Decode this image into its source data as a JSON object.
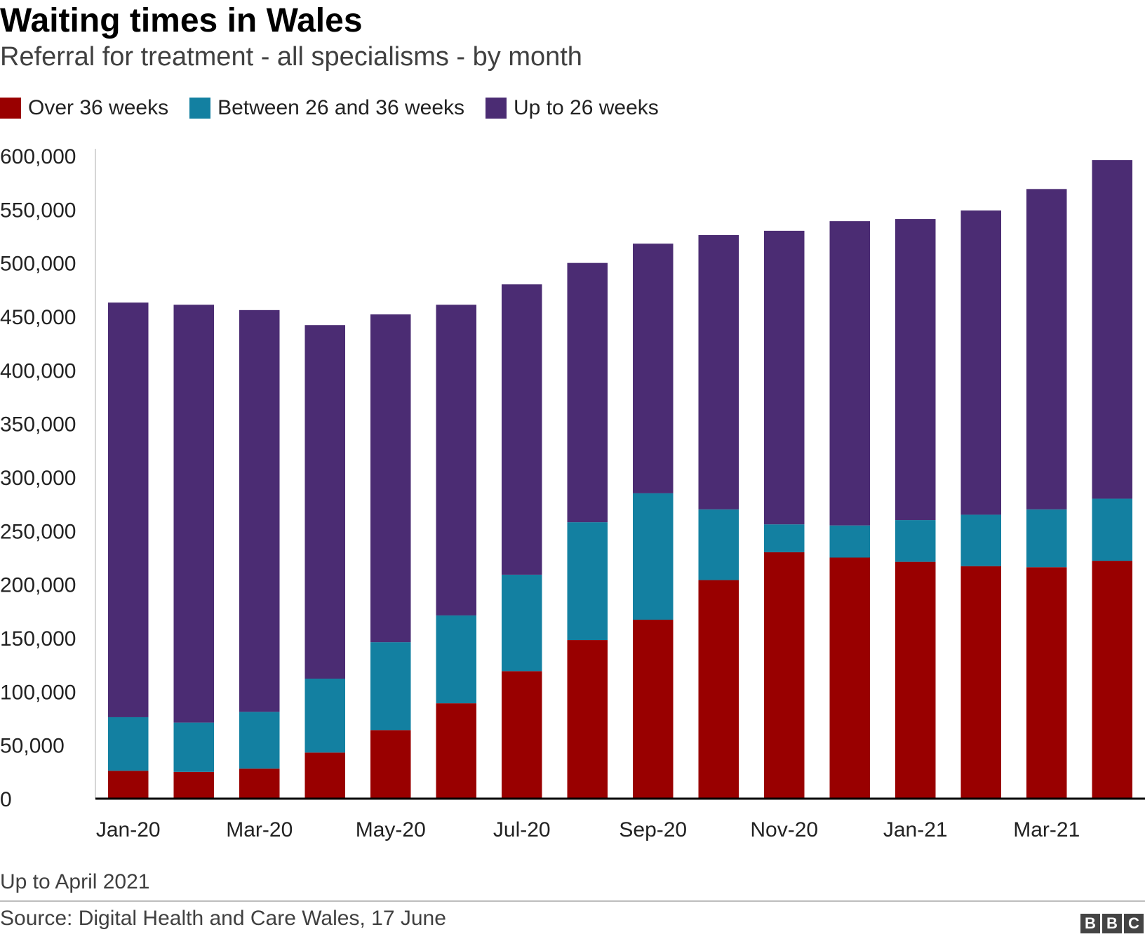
{
  "title": "Waiting times in Wales",
  "subtitle": "Referral for treatment - all specialisms - by month",
  "note": "Up to April 2021",
  "source": "Source: Digital Health and Care Wales, 17 June",
  "brand": [
    "B",
    "B",
    "C"
  ],
  "colors": {
    "over_36": "#990000",
    "between_26_36": "#1380A1",
    "up_to_26": "#4B2C73",
    "axis": "#000000",
    "gridline_y": "#d6d6d6"
  },
  "chart_data": {
    "type": "bar",
    "stacked": true,
    "title": "Waiting times in Wales",
    "subtitle": "Referral for treatment - all specialisms - by month",
    "xlabel": "",
    "ylabel": "",
    "ylim": [
      0,
      600000
    ],
    "yticks": [
      0,
      50000,
      100000,
      150000,
      200000,
      250000,
      300000,
      350000,
      400000,
      450000,
      500000,
      550000,
      600000
    ],
    "ytick_labels": [
      "0",
      "50,000",
      "100,000",
      "150,000",
      "200,000",
      "250,000",
      "300,000",
      "350,000",
      "400,000",
      "450,000",
      "500,000",
      "550,000",
      "600,000"
    ],
    "categories": [
      "Jan-20",
      "Feb-20",
      "Mar-20",
      "Apr-20",
      "May-20",
      "Jun-20",
      "Jul-20",
      "Aug-20",
      "Sep-20",
      "Oct-20",
      "Nov-20",
      "Dec-20",
      "Jan-21",
      "Feb-21",
      "Mar-21",
      "Apr-21"
    ],
    "xtick_labels": [
      "Jan-20",
      "",
      "Mar-20",
      "",
      "May-20",
      "",
      "Jul-20",
      "",
      "Sep-20",
      "",
      "Nov-20",
      "",
      "Jan-21",
      "",
      "Mar-21",
      ""
    ],
    "legend_position": "top-left",
    "series": [
      {
        "name": "Over 36 weeks",
        "color_key": "over_36",
        "values": [
          26000,
          25000,
          28000,
          43000,
          64000,
          89000,
          119000,
          148000,
          167000,
          204000,
          230000,
          225000,
          221000,
          217000,
          216000,
          222000
        ]
      },
      {
        "name": "Between 26 and 36 weeks",
        "color_key": "between_26_36",
        "values": [
          50000,
          46000,
          53000,
          69000,
          82000,
          82000,
          90000,
          110000,
          118000,
          66000,
          26000,
          30000,
          39000,
          48000,
          54000,
          58000
        ]
      },
      {
        "name": "Up to 26 weeks",
        "color_key": "up_to_26",
        "values": [
          387000,
          390000,
          375000,
          330000,
          306000,
          290000,
          271000,
          242000,
          233000,
          256000,
          274000,
          284000,
          281000,
          284000,
          299000,
          316000
        ]
      }
    ]
  }
}
